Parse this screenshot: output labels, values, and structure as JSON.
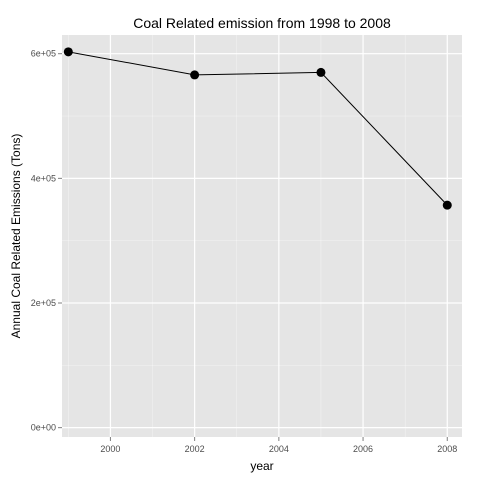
{
  "chart_data": {
    "type": "line",
    "title": "Coal Related emission from 1998 to 2008",
    "xlabel": "year",
    "ylabel": "Annual Coal Related Emissions (Tons)",
    "x": [
      1999,
      2002,
      2005,
      2008
    ],
    "series": [
      {
        "values": [
          603000,
          566000,
          570000,
          357000
        ]
      }
    ],
    "xlim": [
      1998.85,
      2008.35
    ],
    "ylim": [
      -15000,
      630000
    ],
    "x_ticks": [
      2000,
      2002,
      2004,
      2006,
      2008
    ],
    "x_tick_labels": [
      "2000",
      "2002",
      "2004",
      "2006",
      "2008"
    ],
    "y_ticks": [
      0,
      200000,
      400000,
      600000
    ],
    "y_tick_labels": [
      "0e+00",
      "2e+05",
      "4e+05",
      "6e+05"
    ],
    "grid": true,
    "background": "#e5e5e5",
    "grid_color": "#ffffff",
    "line_color": "#000000",
    "point_color": "#000000"
  }
}
